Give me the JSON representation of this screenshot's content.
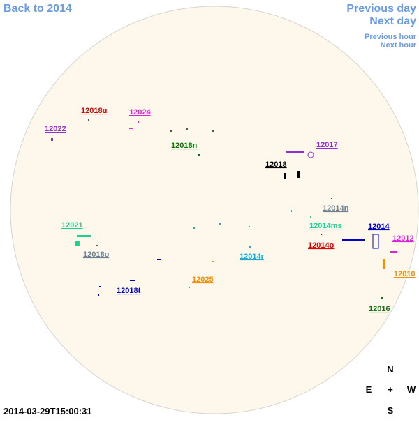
{
  "nav": {
    "back": "Back to 2014",
    "prev_day": "Previous day",
    "next_day": "Next day",
    "prev_hour": "Previous hour",
    "next_hour": "Next hour"
  },
  "timestamp": "2014-03-29T15:00:31",
  "compass": {
    "north": "N",
    "east": "E",
    "center": "+",
    "west": "W",
    "south": "S"
  },
  "regions": [
    {
      "label": "12018u",
      "color": "#e00000"
    },
    {
      "label": "12024",
      "color": "#e020e0"
    },
    {
      "label": "12022",
      "color": "#9030d0"
    },
    {
      "label": "12018n",
      "color": "#107010"
    },
    {
      "label": "12017",
      "color": "#9030d0"
    },
    {
      "label": "12018",
      "color": "#000000"
    },
    {
      "label": "12014n",
      "color": "#708090"
    },
    {
      "label": "12021",
      "color": "#20d090"
    },
    {
      "label": "12014ms",
      "color": "#20d090"
    },
    {
      "label": "12014",
      "color": "#0000c0"
    },
    {
      "label": "12014o",
      "color": "#e00000"
    },
    {
      "label": "12012",
      "color": "#e020e0"
    },
    {
      "label": "12018o",
      "color": "#708090"
    },
    {
      "label": "12014r",
      "color": "#20a8d0"
    },
    {
      "label": "12010",
      "color": "#f0900a"
    },
    {
      "label": "12025",
      "color": "#f0900a"
    },
    {
      "label": "12018t",
      "color": "#0000c0"
    },
    {
      "label": "12016",
      "color": "#107010"
    }
  ]
}
